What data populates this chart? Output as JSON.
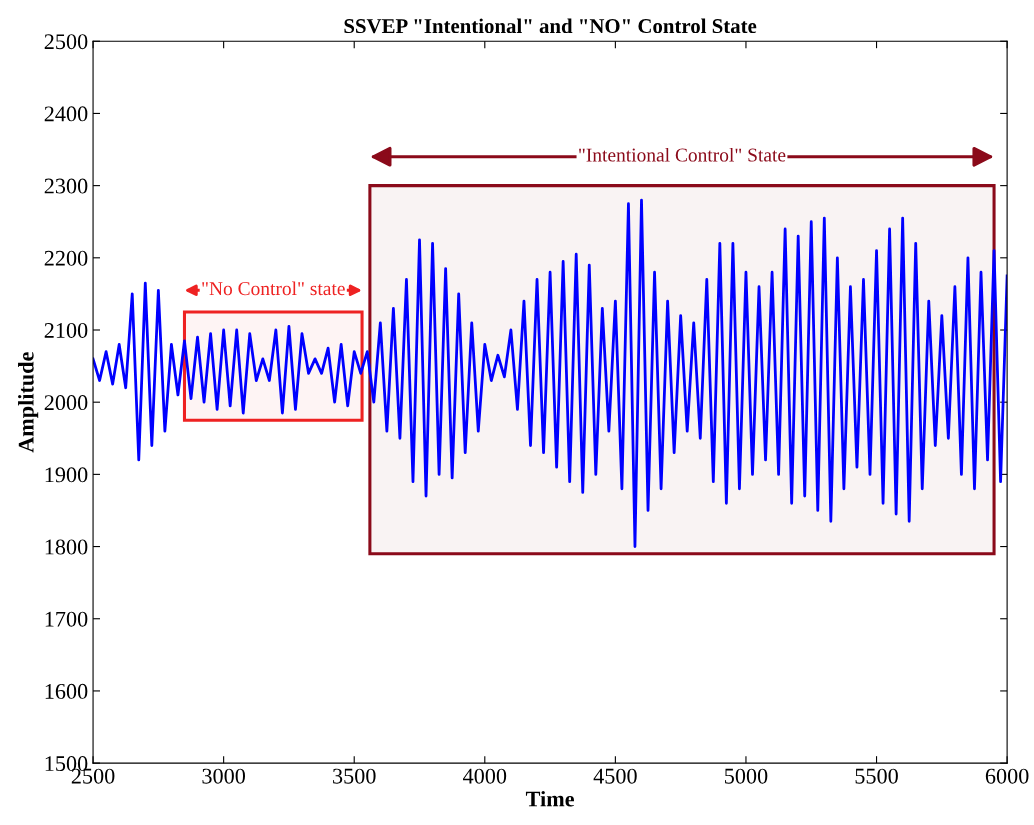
{
  "chart_data": {
    "type": "line",
    "title": "SSVEP \"Intentional\" and \"NO\" Control State",
    "xlabel": "Time",
    "ylabel": "Amplitude",
    "xlim": [
      2500,
      6000
    ],
    "xticks": [
      2500,
      3000,
      3500,
      4000,
      4500,
      5000,
      5500,
      6000
    ],
    "ylim": [
      1500,
      2500
    ],
    "yticks": [
      1500,
      1600,
      1700,
      1800,
      1900,
      2000,
      2100,
      2200,
      2300,
      2400,
      2500
    ],
    "grid": false,
    "marker": "none",
    "line_style": "solid",
    "bands": [
      {
        "axis": "x",
        "from": 2850,
        "to": 3530,
        "label": "\"No Control\" state",
        "color": "#ee2222"
      },
      {
        "axis": "x",
        "from": 3560,
        "to": 5950,
        "label": "\"Intentional Control\" State",
        "color": "#8b0a1a"
      }
    ],
    "series": [
      {
        "color": "#0000ff",
        "x": [
          2500,
          2525,
          2550,
          2575,
          2600,
          2625,
          2650,
          2675,
          2700,
          2725,
          2750,
          2775,
          2800,
          2825,
          2850,
          2875,
          2900,
          2925,
          2950,
          2975,
          3000,
          3025,
          3050,
          3075,
          3100,
          3125,
          3150,
          3175,
          3200,
          3225,
          3250,
          3275,
          3300,
          3325,
          3350,
          3375,
          3400,
          3425,
          3450,
          3475,
          3500,
          3525,
          3550,
          3575,
          3600,
          3625,
          3650,
          3675,
          3700,
          3725,
          3750,
          3775,
          3800,
          3825,
          3850,
          3875,
          3900,
          3925,
          3950,
          3975,
          4000,
          4025,
          4050,
          4075,
          4100,
          4125,
          4150,
          4175,
          4200,
          4225,
          4250,
          4275,
          4300,
          4325,
          4350,
          4375,
          4400,
          4425,
          4450,
          4475,
          4500,
          4525,
          4550,
          4575,
          4600,
          4625,
          4650,
          4675,
          4700,
          4725,
          4750,
          4775,
          4800,
          4825,
          4850,
          4875,
          4900,
          4925,
          4950,
          4975,
          5000,
          5025,
          5050,
          5075,
          5100,
          5125,
          5150,
          5175,
          5200,
          5225,
          5250,
          5275,
          5300,
          5325,
          5350,
          5375,
          5400,
          5425,
          5450,
          5475,
          5500,
          5525,
          5550,
          5575,
          5600,
          5625,
          5650,
          5675,
          5700,
          5725,
          5750,
          5775,
          5800,
          5825,
          5850,
          5875,
          5900,
          5925,
          5950,
          5975,
          6000
        ],
        "values": [
          2060,
          2030,
          2070,
          2025,
          2080,
          2020,
          2150,
          1920,
          2165,
          1940,
          2155,
          1960,
          2080,
          2010,
          2085,
          2005,
          2090,
          2000,
          2095,
          1990,
          2100,
          1995,
          2100,
          1985,
          2095,
          2030,
          2060,
          2030,
          2100,
          1985,
          2105,
          1990,
          2095,
          2040,
          2060,
          2040,
          2075,
          2000,
          2080,
          1995,
          2070,
          2040,
          2070,
          2000,
          2110,
          1960,
          2130,
          1950,
          2170,
          1890,
          2225,
          1870,
          2220,
          1900,
          2185,
          1895,
          2150,
          1930,
          2110,
          1960,
          2080,
          2030,
          2065,
          2035,
          2100,
          1990,
          2140,
          1940,
          2170,
          1930,
          2180,
          1910,
          2195,
          1890,
          2205,
          1875,
          2190,
          1900,
          2130,
          1960,
          2140,
          1880,
          2275,
          1800,
          2280,
          1850,
          2180,
          1880,
          2140,
          1930,
          2120,
          1960,
          2110,
          1950,
          2170,
          1890,
          2220,
          1860,
          2220,
          1880,
          2180,
          1900,
          2160,
          1920,
          2180,
          1900,
          2240,
          1860,
          2230,
          1870,
          2250,
          1850,
          2255,
          1835,
          2200,
          1880,
          2160,
          1910,
          2170,
          1900,
          2210,
          1860,
          2240,
          1845,
          2255,
          1835,
          2220,
          1880,
          2140,
          1940,
          2120,
          1950,
          2160,
          1900,
          2200,
          1880,
          2180,
          1920,
          2210,
          1890,
          2175
        ]
      }
    ]
  }
}
